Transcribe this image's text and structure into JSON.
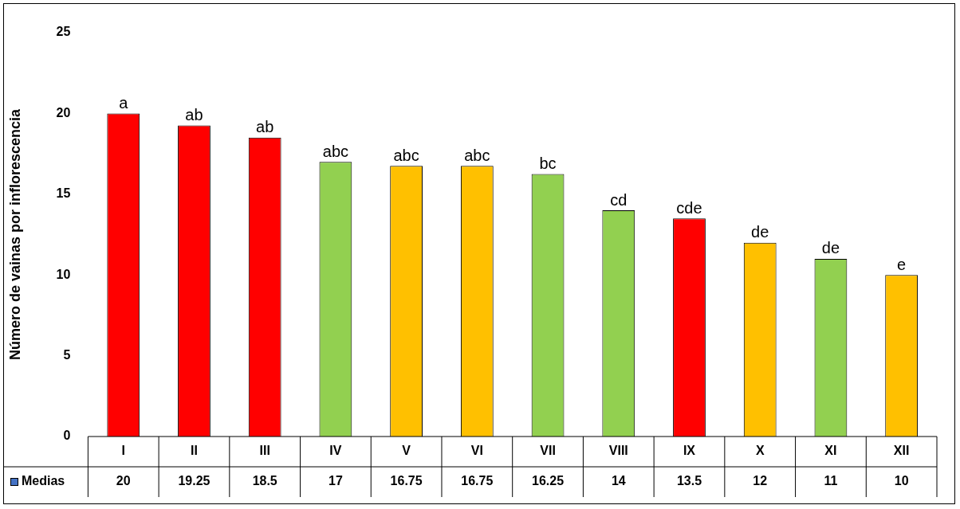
{
  "chart_data": {
    "type": "bar",
    "ylabel": "Número de vainas por inflorescencia",
    "categories": [
      "I",
      "II",
      "III",
      "IV",
      "V",
      "VI",
      "VII",
      "VIII",
      "IX",
      "X",
      "XI",
      "XII"
    ],
    "series": [
      {
        "name": "Medias",
        "color": "#4472c4",
        "colors": [
          "#ff0000",
          "#ff0000",
          "#ff0000",
          "#92d050",
          "#ffc000",
          "#ffc000",
          "#92d050",
          "#92d050",
          "#ff0000",
          "#ffc000",
          "#92d050",
          "#ffc000"
        ],
        "values": [
          20,
          19.25,
          18.5,
          17,
          16.75,
          16.75,
          16.25,
          14,
          13.5,
          12,
          11,
          10
        ]
      }
    ],
    "ylim": [
      0,
      25
    ],
    "yticks": [
      0,
      5,
      10,
      15,
      20,
      25
    ],
    "grid": false,
    "legend": "bottom",
    "data_labels": true,
    "annotations": [
      {
        "text": "a",
        "x": "I",
        "y": 20
      },
      {
        "text": "ab",
        "x": "II",
        "y": 19.25
      },
      {
        "text": "ab",
        "x": "III",
        "y": 18.5
      },
      {
        "text": "abc",
        "x": "IV",
        "y": 17
      },
      {
        "text": "abc",
        "x": "V",
        "y": 16.75
      },
      {
        "text": "abc",
        "x": "VI",
        "y": 16.75
      },
      {
        "text": "bc",
        "x": "VII",
        "y": 16.25
      },
      {
        "text": "cd",
        "x": "VIII",
        "y": 14
      },
      {
        "text": "cde",
        "x": "IX",
        "y": 13.5
      },
      {
        "text": "de",
        "x": "X",
        "y": 12
      },
      {
        "text": "de",
        "x": "XI",
        "y": 11
      },
      {
        "text": "e",
        "x": "XII",
        "y": 10
      }
    ]
  }
}
